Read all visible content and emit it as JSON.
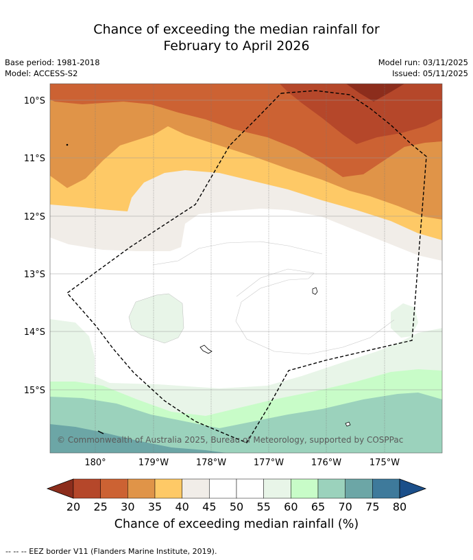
{
  "title": {
    "line1": "Chance of exceeding the median rainfall for",
    "line2": "February to April 2026"
  },
  "meta": {
    "base_period": "Base period: 1981-2018",
    "model": "Model: ACCESS-S2",
    "model_run": "Model run: 03/11/2025",
    "issued": "Issued: 05/11/2025"
  },
  "map": {
    "lat_labels": [
      "10°S",
      "11°S",
      "12°S",
      "13°S",
      "14°S",
      "15°S"
    ],
    "lon_labels": [
      "180°",
      "179°W",
      "178°W",
      "177°W",
      "176°W",
      "175°W"
    ],
    "copyright": "© Commonwealth of Australia 2025, Bureau of Meteorology, supported by COSPPac",
    "border_color": "#000000"
  },
  "colorbar": {
    "ticks": [
      "20",
      "25",
      "30",
      "35",
      "40",
      "45",
      "50",
      "55",
      "60",
      "65",
      "70",
      "75",
      "80"
    ],
    "colors": [
      "#8c2d1c",
      "#b5472a",
      "#cc6233",
      "#e09448",
      "#fec966",
      "#f1ede8",
      "#ffffff",
      "#ffffff",
      "#e8f5e8",
      "#c8fcc8",
      "#9bd2bc",
      "#6ca6a6",
      "#3e7a9b",
      "#1b4f8a"
    ],
    "label": "Chance of exceeding median rainfall (%)"
  },
  "footnote": "--  --  -- EEZ border V11 (Flanders Marine Institute, 2019)."
}
